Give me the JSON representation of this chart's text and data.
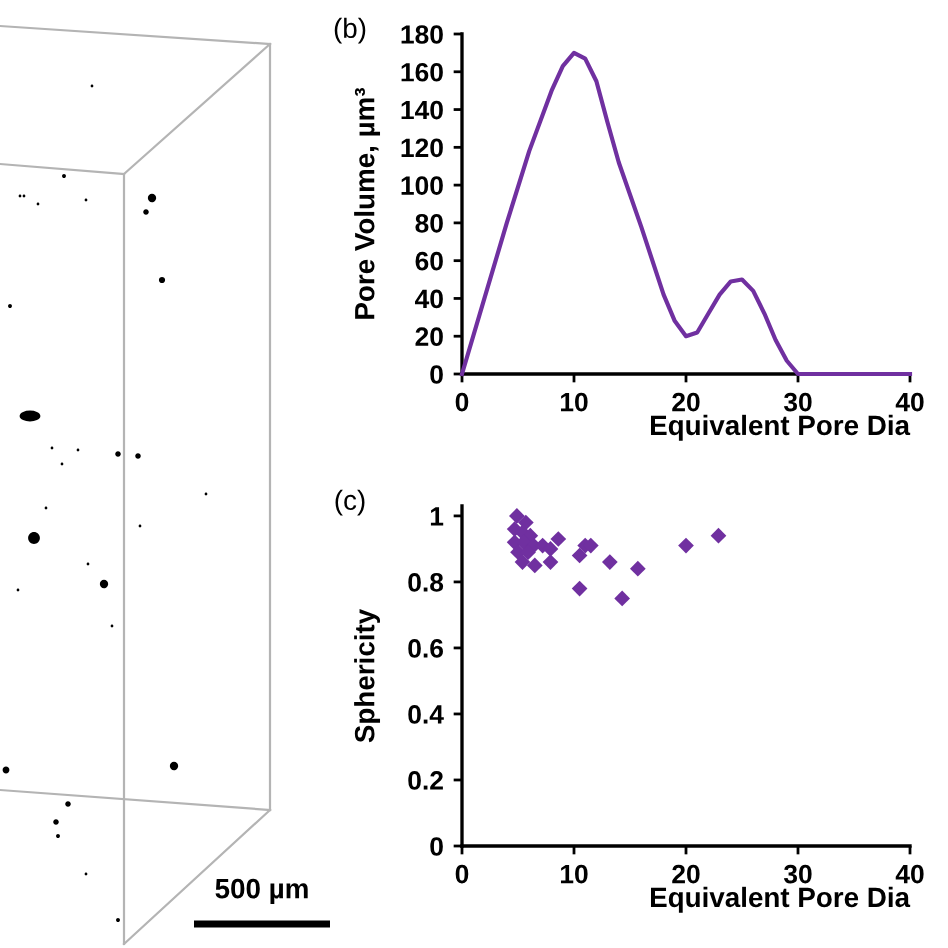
{
  "chart_data": [
    {
      "type": "other",
      "annotations": [
        "500 µm"
      ]
    },
    {
      "type": "line",
      "title": "(b)",
      "xlabel": "Equivalent Pore Dia",
      "ylabel": "Pore Volume, µm³",
      "x": [
        0,
        2,
        4,
        6,
        8,
        9,
        10,
        11,
        12,
        13,
        14,
        16,
        18,
        19,
        20,
        21,
        22,
        23,
        24,
        25,
        26,
        27,
        28,
        29,
        30,
        32,
        35,
        38,
        40
      ],
      "values": [
        0,
        40,
        80,
        118,
        150,
        163,
        170,
        167,
        155,
        133,
        112,
        78,
        42,
        28,
        20,
        22,
        32,
        42,
        49,
        50,
        44,
        32,
        18,
        7,
        0,
        0,
        0,
        0,
        0
      ],
      "color": "#7030a0",
      "xlim": [
        0,
        40
      ],
      "xticks": [
        0,
        10,
        20,
        30,
        40
      ],
      "ylim": [
        0,
        180
      ],
      "yticks": [
        0,
        20,
        40,
        60,
        80,
        100,
        120,
        140,
        160,
        180
      ]
    },
    {
      "type": "scatter",
      "title": "(c)",
      "xlabel": "Equivalent Pore Dia",
      "ylabel": "Sphericity",
      "x": [
        4.9,
        5.7,
        4.7,
        5.4,
        6.1,
        4.7,
        5.5,
        6.4,
        5.0,
        5.9,
        7.2,
        5.4,
        6.5,
        7.9,
        8.6,
        7.9,
        10.5,
        11.0,
        11.5,
        13.2,
        15.7,
        10.5,
        14.3,
        20.0,
        22.9
      ],
      "values": [
        1.0,
        0.98,
        0.96,
        0.95,
        0.94,
        0.92,
        0.92,
        0.91,
        0.89,
        0.89,
        0.91,
        0.86,
        0.85,
        0.9,
        0.93,
        0.86,
        0.88,
        0.91,
        0.91,
        0.86,
        0.84,
        0.78,
        0.75,
        0.91,
        0.94
      ],
      "color": "#7030a0",
      "marker": "diamond",
      "xlim": [
        0,
        40
      ],
      "xticks": [
        0,
        10,
        20,
        30,
        40
      ],
      "ylim": [
        0,
        1.03
      ],
      "yticks": [
        0,
        0.2,
        0.4,
        0.6,
        0.8,
        1
      ]
    }
  ]
}
